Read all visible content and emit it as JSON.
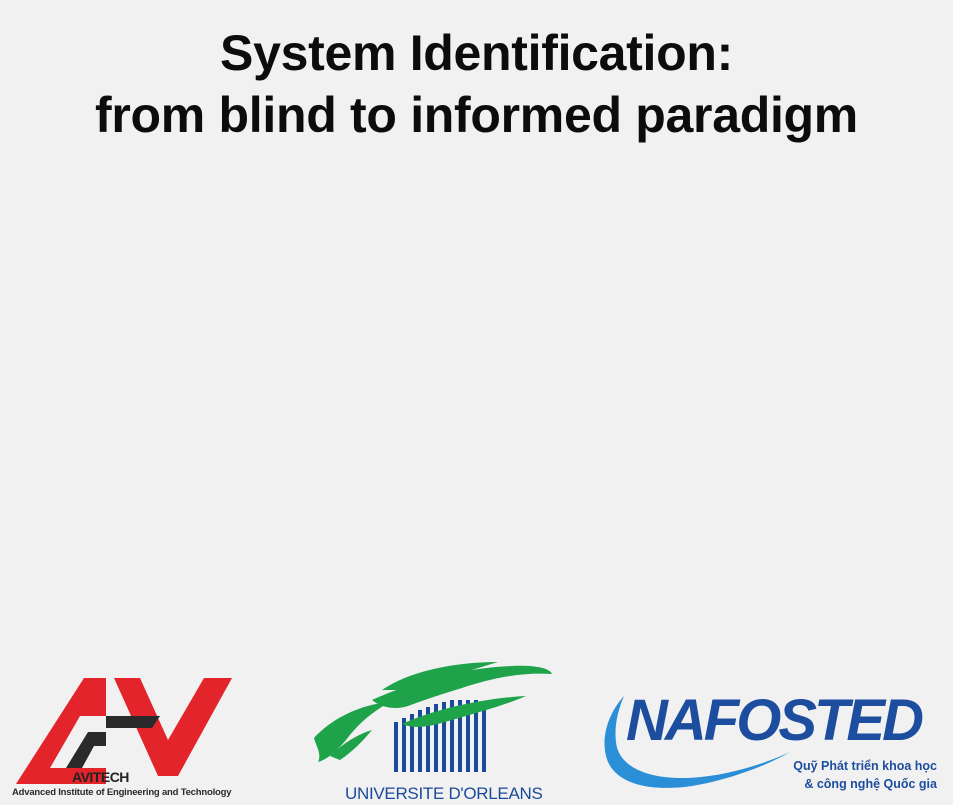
{
  "slide": {
    "title_line1": "System Identification:",
    "title_line2": "from blind to informed paradigm"
  },
  "logos": {
    "avitech": {
      "wordmark": "AVITECH",
      "caption": "Advanced Institute of Engineering and Technology",
      "colors": {
        "red": "#e3242b",
        "dark": "#2a2a2a"
      }
    },
    "orleans": {
      "caption": "UNIVERSITE D'ORLEANS",
      "colors": {
        "green": "#1fa34a",
        "blue": "#1b4a9b"
      }
    },
    "nafosted": {
      "wordmark": "NAFOSTED",
      "subtitle_line1": "Quỹ Phát triển khoa học",
      "subtitle_line2": "& công nghệ Quốc gia",
      "colors": {
        "blue": "#1d4d9e",
        "swoosh": "#2a8fd6"
      }
    }
  }
}
